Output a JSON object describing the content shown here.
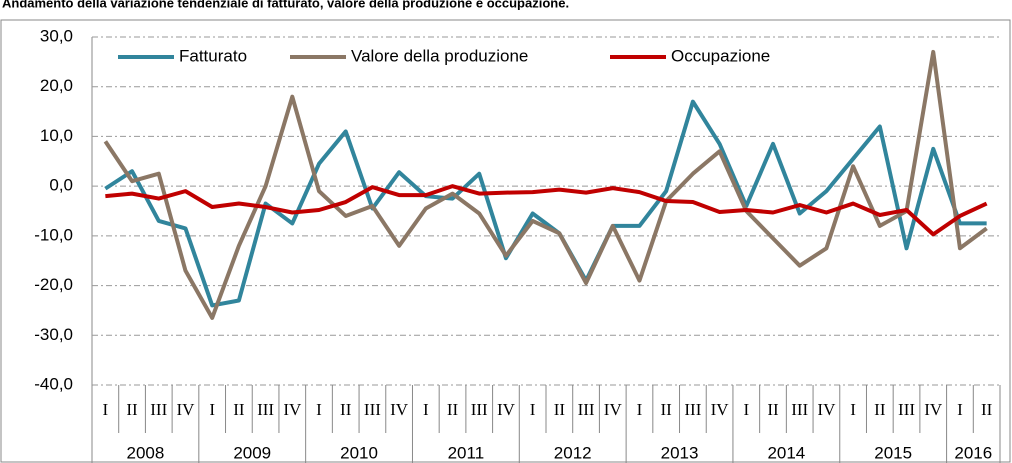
{
  "chart_data": {
    "type": "line",
    "title": "Andamento della variazione tendenziale di fatturato, valore della produzione e occupazione.",
    "categories": [
      "I",
      "II",
      "III",
      "IV",
      "I",
      "II",
      "III",
      "IV",
      "I",
      "II",
      "III",
      "IV",
      "I",
      "II",
      "III",
      "IV",
      "I",
      "II",
      "III",
      "IV",
      "I",
      "II",
      "III",
      "IV",
      "I",
      "II",
      "III",
      "IV",
      "I",
      "II",
      "III",
      "IV",
      "I",
      "II"
    ],
    "years": [
      "2008",
      "2009",
      "2010",
      "2011",
      "2012",
      "2013",
      "2014",
      "2015",
      "2016"
    ],
    "series": [
      {
        "name": "Fatturato",
        "color": "#31859c",
        "values": [
          -0.5,
          3,
          -7,
          -8.5,
          -24,
          -23,
          -3.5,
          -7.5,
          4.5,
          11,
          -4.5,
          2.8,
          -2,
          -2.5,
          2.5,
          -14.5,
          -5.5,
          -9.5,
          -19,
          -8,
          -8,
          -1,
          17,
          8.5,
          -4,
          8.5,
          -5.5,
          -1,
          5.5,
          12,
          -12.5,
          7.5,
          -7.5,
          -7.5
        ]
      },
      {
        "name": "Valore della produzione",
        "color": "#8b7765",
        "values": [
          9,
          1,
          2.5,
          -17,
          -26.5,
          -12,
          0,
          18,
          -1,
          -6,
          -4,
          -12,
          -4.5,
          -1.5,
          -5.5,
          -14,
          -7,
          -9.5,
          -19.5,
          -8,
          -19,
          -3,
          2.5,
          7,
          -5,
          -10.5,
          -16,
          -12.5,
          4,
          -8,
          -5,
          27,
          -12.5,
          -8.5
        ]
      },
      {
        "name": "Occupazione",
        "color": "#c00000",
        "values": [
          -2,
          -1.5,
          -2.5,
          -1,
          -4.2,
          -3.5,
          -4.2,
          -5.3,
          -4.8,
          -3.2,
          -0.2,
          -1.8,
          -1.8,
          0,
          -1.5,
          -1.3,
          -1.2,
          -0.7,
          -1.3,
          -0.4,
          -1.2,
          -3,
          -3.2,
          -5.2,
          -4.8,
          -5.3,
          -3.8,
          -5.3,
          -3.5,
          -5.8,
          -4.8,
          -9.7,
          -6,
          -3.5
        ]
      }
    ],
    "ylim": [
      -40,
      30
    ],
    "yticks": [
      {
        "value": -40,
        "label": "-40,0"
      },
      {
        "value": -30,
        "label": "-30,0"
      },
      {
        "value": -20,
        "label": "-20,0"
      },
      {
        "value": -10,
        "label": "-10,0"
      },
      {
        "value": 0,
        "label": "0,0"
      },
      {
        "value": 10,
        "label": "10,0"
      },
      {
        "value": 20,
        "label": "20,0"
      },
      {
        "value": 30,
        "label": "30,0"
      }
    ],
    "grid": true,
    "legend": "upper left"
  }
}
